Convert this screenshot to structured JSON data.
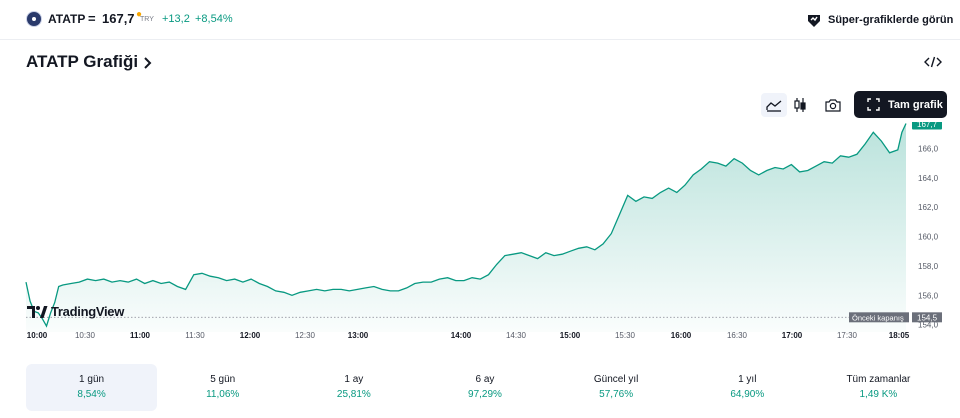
{
  "header": {
    "symbol": "ATATP",
    "equals": "=",
    "price": "167,7",
    "currency": "TRY",
    "change": "+13,2",
    "change_percent": "+8,54%",
    "super_charts_label": "Süper-grafiklerde görün"
  },
  "title": "ATATP Grafiği",
  "toolbar": {
    "fullscreen_label": "Tam grafik"
  },
  "colors": {
    "up": "#089981",
    "dark": "#131722",
    "accent_dot": "#f7a600"
  },
  "chart_data": {
    "type": "area",
    "x_ticks": [
      "10:00",
      "10:30",
      "11:00",
      "11:30",
      "12:00",
      "12:30",
      "13:00",
      "14:00",
      "14:30",
      "15:00",
      "15:30",
      "16:00",
      "16:30",
      "17:00",
      "17:30",
      "18:05"
    ],
    "x_ticks_major": [
      "10:00",
      "11:00",
      "12:00",
      "13:00",
      "14:00",
      "15:00",
      "16:00",
      "17:00",
      "18:05"
    ],
    "y_ticks": [
      "154,0",
      "156,0",
      "158,0",
      "160,0",
      "162,0",
      "164,0",
      "166,0"
    ],
    "ylim": [
      153.5,
      167.8
    ],
    "last_price": 167.7,
    "last_price_label": "167,7",
    "previous_close": 154.5,
    "previous_close_label": "154,5",
    "previous_close_text": "Önceki kapanış",
    "grid": false,
    "series": [
      {
        "points": [
          [
            0,
            156.9
          ],
          [
            2,
            155.6
          ],
          [
            4,
            154.9
          ],
          [
            6,
            154.8
          ],
          [
            8,
            154.4
          ],
          [
            10,
            153.9
          ],
          [
            12,
            154.8
          ],
          [
            14,
            155.5
          ],
          [
            16,
            156.6
          ],
          [
            18,
            156.7
          ],
          [
            22,
            156.8
          ],
          [
            26,
            156.9
          ],
          [
            30,
            157.1
          ],
          [
            34,
            157.0
          ],
          [
            38,
            157.1
          ],
          [
            42,
            156.9
          ],
          [
            46,
            157.0
          ],
          [
            50,
            156.9
          ],
          [
            54,
            157.1
          ],
          [
            58,
            156.8
          ],
          [
            62,
            157.0
          ],
          [
            66,
            156.8
          ],
          [
            70,
            156.9
          ],
          [
            74,
            156.6
          ],
          [
            78,
            156.4
          ],
          [
            82,
            157.4
          ],
          [
            86,
            157.5
          ],
          [
            90,
            157.3
          ],
          [
            94,
            157.2
          ],
          [
            98,
            157.0
          ],
          [
            102,
            157.1
          ],
          [
            106,
            156.9
          ],
          [
            110,
            157.1
          ],
          [
            114,
            156.8
          ],
          [
            118,
            156.6
          ],
          [
            122,
            156.3
          ],
          [
            126,
            156.2
          ],
          [
            130,
            156.0
          ],
          [
            134,
            156.2
          ],
          [
            138,
            156.3
          ],
          [
            142,
            156.4
          ],
          [
            146,
            156.3
          ],
          [
            150,
            156.4
          ],
          [
            154,
            156.4
          ],
          [
            158,
            156.3
          ],
          [
            162,
            156.4
          ],
          [
            166,
            156.5
          ],
          [
            170,
            156.6
          ],
          [
            174,
            156.4
          ],
          [
            178,
            156.3
          ],
          [
            182,
            156.3
          ],
          [
            186,
            156.5
          ],
          [
            190,
            156.8
          ],
          [
            194,
            156.9
          ],
          [
            198,
            156.9
          ],
          [
            202,
            157.1
          ],
          [
            206,
            157.2
          ],
          [
            210,
            157.0
          ],
          [
            214,
            157.0
          ],
          [
            218,
            157.2
          ],
          [
            222,
            157.1
          ],
          [
            226,
            157.4
          ],
          [
            230,
            158.1
          ],
          [
            234,
            158.7
          ],
          [
            238,
            158.8
          ],
          [
            242,
            158.9
          ],
          [
            246,
            158.7
          ],
          [
            250,
            158.5
          ],
          [
            254,
            158.9
          ],
          [
            258,
            158.7
          ],
          [
            262,
            158.8
          ],
          [
            266,
            159.0
          ],
          [
            270,
            159.2
          ],
          [
            274,
            159.3
          ],
          [
            278,
            159.1
          ],
          [
            282,
            159.5
          ],
          [
            286,
            160.2
          ],
          [
            290,
            161.5
          ],
          [
            294,
            162.8
          ],
          [
            298,
            162.4
          ],
          [
            302,
            162.7
          ],
          [
            306,
            162.6
          ],
          [
            310,
            163.0
          ],
          [
            314,
            163.3
          ],
          [
            318,
            163.0
          ],
          [
            322,
            163.5
          ],
          [
            326,
            164.2
          ],
          [
            330,
            164.6
          ],
          [
            334,
            165.1
          ],
          [
            338,
            165.0
          ],
          [
            342,
            164.8
          ],
          [
            346,
            165.3
          ],
          [
            350,
            165.0
          ],
          [
            354,
            164.5
          ],
          [
            358,
            164.2
          ],
          [
            362,
            164.5
          ],
          [
            366,
            164.7
          ],
          [
            370,
            164.6
          ],
          [
            374,
            164.9
          ],
          [
            378,
            164.4
          ],
          [
            382,
            164.5
          ],
          [
            386,
            164.8
          ],
          [
            390,
            165.1
          ],
          [
            394,
            165.0
          ],
          [
            398,
            165.5
          ],
          [
            402,
            165.4
          ],
          [
            406,
            165.6
          ],
          [
            410,
            166.3
          ],
          [
            414,
            167.1
          ],
          [
            418,
            166.5
          ],
          [
            422,
            165.7
          ],
          [
            426,
            165.9
          ],
          [
            428,
            167.1
          ],
          [
            430,
            167.7
          ]
        ]
      }
    ]
  },
  "periods": [
    {
      "name": "1 gün",
      "value": "8,54%"
    },
    {
      "name": "5 gün",
      "value": "11,06%"
    },
    {
      "name": "1 ay",
      "value": "25,81%"
    },
    {
      "name": "6 ay",
      "value": "97,29%"
    },
    {
      "name": "Güncel yıl",
      "value": "57,76%"
    },
    {
      "name": "1 yıl",
      "value": "64,90%"
    },
    {
      "name": "Tüm zamanlar",
      "value": "1,49 K%"
    }
  ],
  "watermark": "TradingView"
}
